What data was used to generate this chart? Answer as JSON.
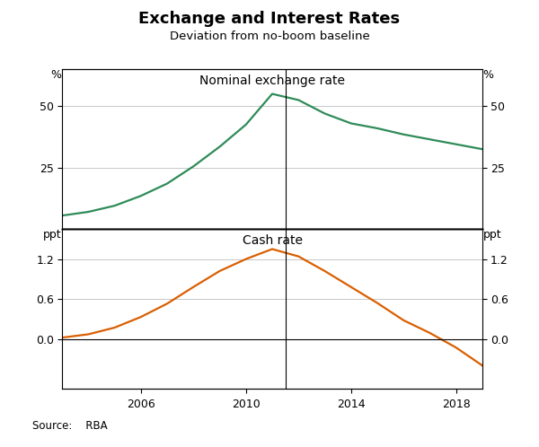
{
  "title": "Exchange and Interest Rates",
  "subtitle": "Deviation from no-boom baseline",
  "source": "Source:    RBA",
  "top_panel": {
    "label_left": "%",
    "label_right": "%",
    "panel_label": "Nominal exchange rate",
    "yticks": [
      25,
      50
    ],
    "ylim": [
      0,
      65
    ],
    "color": "#2e8b57",
    "years": [
      2003,
      2004,
      2005,
      2006,
      2007,
      2008,
      2009,
      2010,
      2011,
      2012,
      2013,
      2014,
      2015,
      2016,
      2017,
      2018,
      2019
    ],
    "values": [
      5.5,
      7.0,
      9.5,
      13.5,
      18.5,
      25.5,
      33.5,
      42.5,
      55.0,
      52.5,
      47.0,
      43.0,
      41.0,
      38.5,
      36.5,
      34.5,
      32.5
    ]
  },
  "bottom_panel": {
    "label_left": "ppt",
    "label_right": "ppt",
    "panel_label": "Cash rate",
    "yticks": [
      0.0,
      0.6,
      1.2
    ],
    "ylim": [
      -0.75,
      1.65
    ],
    "color": "#d95f02",
    "years": [
      2003,
      2004,
      2005,
      2006,
      2007,
      2008,
      2009,
      2010,
      2011,
      2012,
      2013,
      2014,
      2015,
      2016,
      2017,
      2018,
      2019
    ],
    "values": [
      0.02,
      0.07,
      0.17,
      0.33,
      0.53,
      0.78,
      1.02,
      1.2,
      1.35,
      1.24,
      1.02,
      0.78,
      0.54,
      0.28,
      0.09,
      -0.13,
      -0.4
    ]
  },
  "xmin": 2003,
  "xmax": 2019,
  "xticks": [
    2006,
    2010,
    2014,
    2018
  ],
  "vline_x": 2011.5,
  "background_color": "#ffffff",
  "grid_color": "#b0b0b0",
  "border_color": "#000000"
}
